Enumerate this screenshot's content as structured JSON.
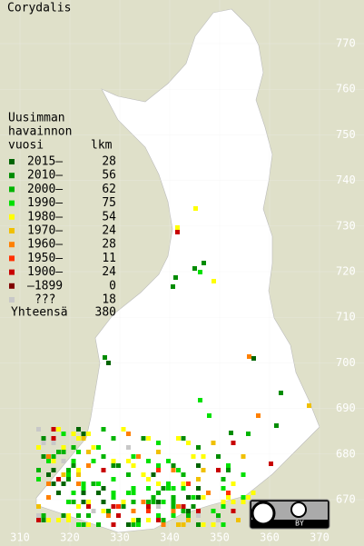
{
  "title": "Corydalis",
  "legend": {
    "heading": [
      "Uusimman",
      "havainnon",
      "vuosi"
    ],
    "count_heading": "lkm",
    "items": [
      {
        "label": "2015–",
        "color": "#006400",
        "count": 28
      },
      {
        "label": "2010–",
        "color": "#008c00",
        "count": 56
      },
      {
        "label": "2000–",
        "color": "#00b400",
        "count": 62
      },
      {
        "label": "1990–",
        "color": "#00e000",
        "count": 75
      },
      {
        "label": "1980–",
        "color": "#ffff00",
        "count": 54
      },
      {
        "label": "1970–",
        "color": "#f0c000",
        "count": 24
      },
      {
        "label": "1960–",
        "color": "#ff8000",
        "count": 28
      },
      {
        "label": "1950–",
        "color": "#ff3000",
        "count": 11
      },
      {
        "label": "1900–",
        "color": "#c80000",
        "count": 24
      },
      {
        "label": "–1899",
        "color": "#800000",
        "count": 0
      },
      {
        "label": "???",
        "color": "#c8c8c8",
        "count": 18
      }
    ],
    "total_label": "Yhteensä",
    "total": 380
  },
  "grid": {
    "yticks": [
      770,
      760,
      750,
      740,
      730,
      720,
      710,
      700,
      690,
      680,
      670
    ],
    "xticks": [
      310,
      320,
      330,
      340,
      350,
      360,
      370
    ]
  },
  "badge": "BY"
}
